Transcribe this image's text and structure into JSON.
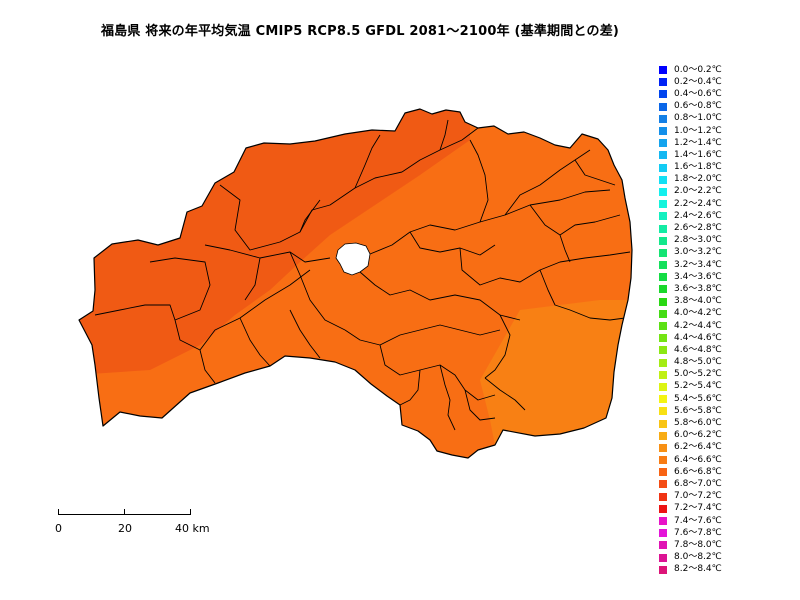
{
  "title": "福島県 将来の年平均気温 CMIP5 RCP8.5 GFDL 2081～2100年 (基準期間との差)",
  "legend": [
    {
      "label": "0.0～0.2℃",
      "color": "#0000ff"
    },
    {
      "label": "0.2～0.4℃",
      "color": "#0022f5"
    },
    {
      "label": "0.4～0.6℃",
      "color": "#0044ee"
    },
    {
      "label": "0.6～0.8℃",
      "color": "#0a66e8"
    },
    {
      "label": "0.8～1.0℃",
      "color": "#1480e6"
    },
    {
      "label": "1.0～1.2℃",
      "color": "#1490ea"
    },
    {
      "label": "1.2～1.4℃",
      "color": "#14a4ee"
    },
    {
      "label": "1.4～1.6℃",
      "color": "#14b8f2"
    },
    {
      "label": "1.6～1.8℃",
      "color": "#14ccf4"
    },
    {
      "label": "1.8～2.0℃",
      "color": "#14e0f4"
    },
    {
      "label": "2.0～2.2℃",
      "color": "#14f0ee"
    },
    {
      "label": "2.2～2.4℃",
      "color": "#14f4dc"
    },
    {
      "label": "2.4～2.6℃",
      "color": "#14f0c0"
    },
    {
      "label": "2.6～2.8℃",
      "color": "#14eca4"
    },
    {
      "label": "2.8～3.0℃",
      "color": "#14e88c"
    },
    {
      "label": "3.0～3.2℃",
      "color": "#14e474"
    },
    {
      "label": "3.2～3.4℃",
      "color": "#14e05c"
    },
    {
      "label": "3.4～3.6℃",
      "color": "#14dc44"
    },
    {
      "label": "3.6～3.8℃",
      "color": "#1ad82c"
    },
    {
      "label": "3.8～4.0℃",
      "color": "#2ad814"
    },
    {
      "label": "4.0～4.2℃",
      "color": "#44dc14"
    },
    {
      "label": "4.2～4.4℃",
      "color": "#5ce014"
    },
    {
      "label": "4.4～4.6℃",
      "color": "#74e414"
    },
    {
      "label": "4.6～4.8℃",
      "color": "#8ce814"
    },
    {
      "label": "4.8～5.0℃",
      "color": "#a4ec14"
    },
    {
      "label": "5.0～5.2℃",
      "color": "#c0f014"
    },
    {
      "label": "5.2～5.4℃",
      "color": "#dcf414"
    },
    {
      "label": "5.4～5.6℃",
      "color": "#f4f414"
    },
    {
      "label": "5.6～5.8℃",
      "color": "#f8e014"
    },
    {
      "label": "5.8～6.0℃",
      "color": "#f8c414"
    },
    {
      "label": "6.0～6.2℃",
      "color": "#f8ac14"
    },
    {
      "label": "6.2～6.4℃",
      "color": "#f89014"
    },
    {
      "label": "6.4～6.6℃",
      "color": "#f87c14"
    },
    {
      "label": "6.6～6.8℃",
      "color": "#f86414"
    },
    {
      "label": "6.8～7.0℃",
      "color": "#f44c14"
    },
    {
      "label": "7.0～7.2℃",
      "color": "#f03414"
    },
    {
      "label": "7.2～7.4℃",
      "color": "#ec1414"
    },
    {
      "label": "7.4～7.6℃",
      "color": "#e814c8"
    },
    {
      "label": "7.6～7.8℃",
      "color": "#e414d8"
    },
    {
      "label": "7.8～8.0℃",
      "color": "#e014b4"
    },
    {
      "label": "8.0～8.2℃",
      "color": "#dc1494"
    },
    {
      "label": "8.2～8.4℃",
      "color": "#dc1478"
    }
  ],
  "scalebar": {
    "ticks": [
      "0",
      "20",
      "40 km"
    ]
  },
  "map_colors": {
    "west": "#f05a14",
    "central": "#f86e14",
    "coast": "#f88014",
    "outline": "#000000"
  }
}
